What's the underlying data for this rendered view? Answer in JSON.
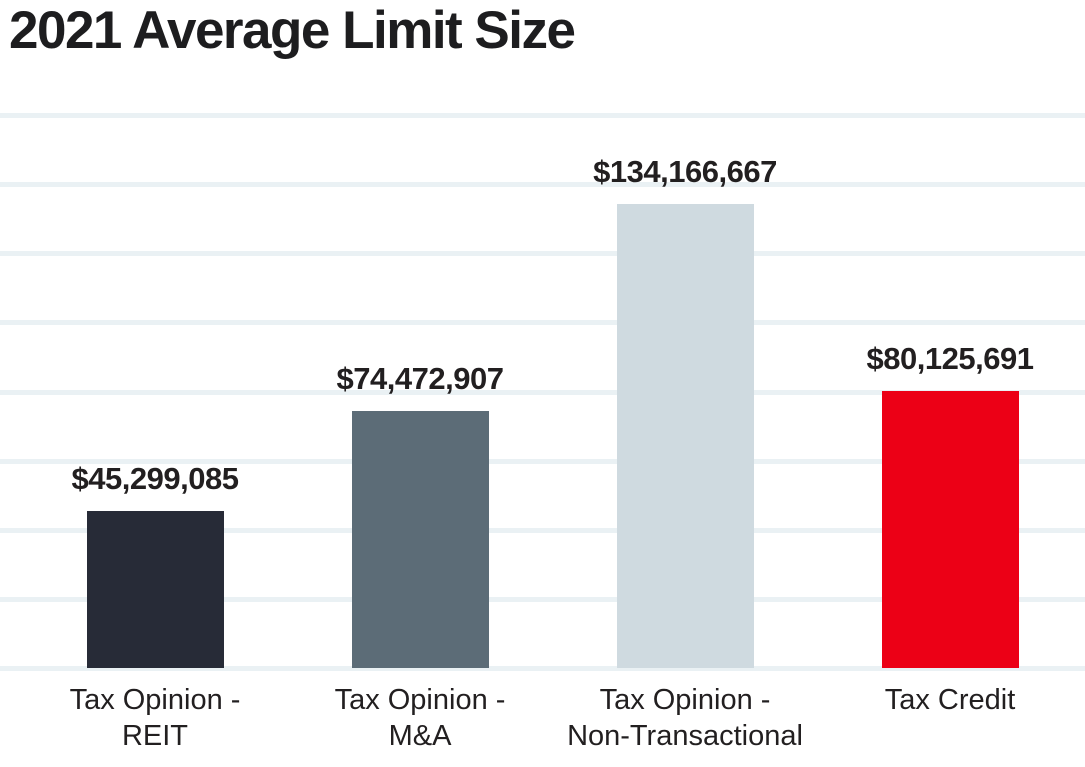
{
  "chart_data": {
    "type": "bar",
    "title": "2021 Average Limit Size",
    "xlabel": "",
    "ylabel": "",
    "categories": [
      "Tax Opinion - REIT",
      "Tax Opinion - M&A",
      "Tax Opinion - Non-Transactional",
      "Tax Credit"
    ],
    "values": [
      45299085,
      74472907,
      134166667,
      80125691
    ],
    "bars": [
      {
        "slug": "tax-opinion-reit",
        "label_lines": [
          "Tax Opinion -",
          "REIT"
        ],
        "value": 45299085,
        "value_label": "$45,299,085",
        "color": "#272b37"
      },
      {
        "slug": "tax-opinion-ma",
        "label_lines": [
          "Tax Opinion -",
          "M&A"
        ],
        "value": 74472907,
        "value_label": "$74,472,907",
        "color": "#5c6c77"
      },
      {
        "slug": "tax-opinion-non-transactional",
        "label_lines": [
          "Tax Opinion -",
          "Non-Transactional"
        ],
        "value": 134166667,
        "value_label": "$134,166,667",
        "color": "#cfdae0"
      },
      {
        "slug": "tax-credit",
        "label_lines": [
          "Tax Credit"
        ],
        "value": 80125691,
        "value_label": "$80,125,691",
        "color": "#ec0016"
      }
    ],
    "ylim": [
      0,
      160000000
    ],
    "gridline_step": 20000000,
    "grid": "horizontal",
    "gridline_color": "#eaf1f4",
    "legend": false,
    "y_tick_labels_visible": false,
    "value_labels_visible": true,
    "background": "#ffffff",
    "title_color": "#1d1d1f",
    "label_color": "#221f20"
  }
}
